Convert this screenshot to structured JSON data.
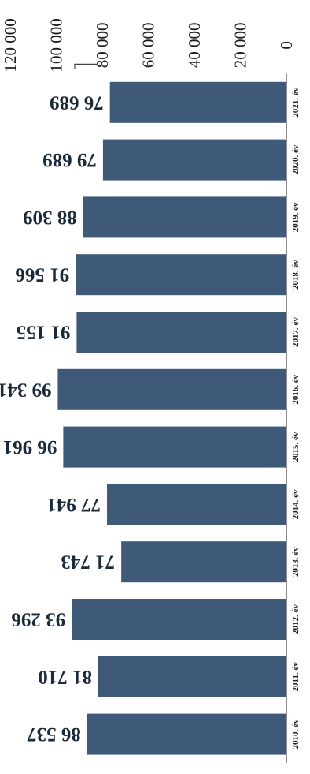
{
  "chart_data": {
    "type": "bar",
    "orientation": "vertical",
    "rotation": "image rotated 180 degrees (upside-down)",
    "categories": [
      "2010. év",
      "2011. év",
      "2012. év",
      "2013. év",
      "2014. év",
      "2015. év",
      "2016. év",
      "2017. év",
      "2018. év",
      "2019. év",
      "2020. év",
      "2021. év"
    ],
    "values": [
      86537,
      81710,
      93296,
      71743,
      77941,
      96961,
      99341,
      91155,
      91566,
      88309,
      79689,
      76689
    ],
    "value_labels": [
      "86 537",
      "81 710",
      "93 296",
      "71 743",
      "77 941",
      "96 961",
      "99 341",
      "91 155",
      "91 566",
      "88 309",
      "79 689",
      "76 689"
    ],
    "y_ticks": [
      "0",
      "20 000",
      "40 000",
      "60 000",
      "80 000",
      "100 000",
      "120 000"
    ],
    "ylim": [
      0,
      120000
    ],
    "colors": {
      "bar": "#3f5a78"
    },
    "legend": "none",
    "grid": false
  }
}
